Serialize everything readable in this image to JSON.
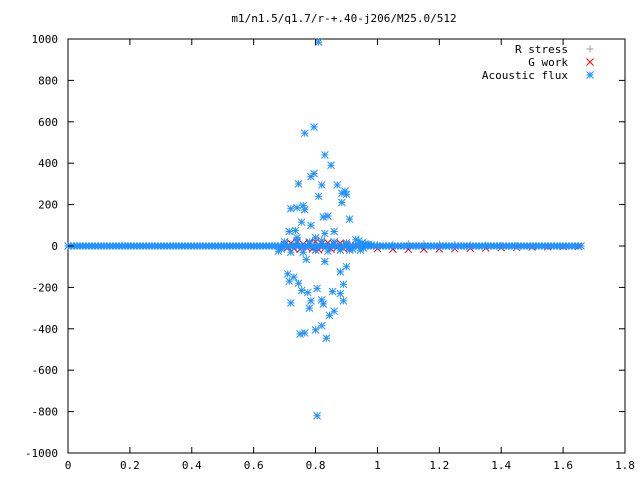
{
  "chart_data": {
    "type": "scatter",
    "title": "m1/n1.5/q1.7/r-+.40-j206/M25.0/512",
    "xlabel": "",
    "ylabel": "",
    "xlim": [
      0,
      1.8
    ],
    "ylim": [
      -1000,
      1000
    ],
    "x_ticks": [
      "0",
      "0.2",
      "0.4",
      "0.6",
      "0.8",
      "1",
      "1.2",
      "1.4",
      "1.6",
      "1.8"
    ],
    "y_ticks": [
      "1000",
      "800",
      "600",
      "400",
      "200",
      "0",
      "-200",
      "-400",
      "-600",
      "-800",
      "-1000"
    ],
    "x_tick_values": [
      0,
      0.2,
      0.4,
      0.6,
      0.8,
      1.0,
      1.2,
      1.4,
      1.6,
      1.8
    ],
    "y_tick_values": [
      1000,
      800,
      600,
      400,
      200,
      0,
      -200,
      -400,
      -600,
      -800,
      -1000
    ],
    "grid": false,
    "legend_position": "top-right",
    "series": [
      {
        "name": "R stress",
        "color": "#a0a0a0",
        "marker": "plus",
        "points": [
          [
            0.7,
            2
          ],
          [
            0.72,
            -3
          ],
          [
            0.74,
            4
          ],
          [
            0.76,
            -2
          ],
          [
            0.78,
            3
          ],
          [
            0.8,
            -4
          ],
          [
            0.82,
            2
          ],
          [
            0.84,
            -2
          ],
          [
            0.86,
            3
          ],
          [
            0.88,
            -3
          ],
          [
            0.9,
            2
          ],
          [
            0.95,
            5
          ],
          [
            1.0,
            8
          ],
          [
            1.05,
            10
          ],
          [
            1.1,
            12
          ],
          [
            1.15,
            12
          ],
          [
            1.2,
            10
          ],
          [
            1.25,
            8
          ],
          [
            1.3,
            6
          ],
          [
            1.35,
            4
          ],
          [
            1.4,
            3
          ],
          [
            1.45,
            2
          ],
          [
            1.5,
            1
          ],
          [
            1.55,
            1
          ],
          [
            1.6,
            0
          ],
          [
            1.65,
            0
          ]
        ]
      },
      {
        "name": "G work",
        "color": "#ff0000",
        "marker": "cross",
        "points": [
          [
            0.7,
            8
          ],
          [
            0.71,
            -8
          ],
          [
            0.72,
            14
          ],
          [
            0.73,
            -12
          ],
          [
            0.74,
            18
          ],
          [
            0.75,
            -16
          ],
          [
            0.76,
            10
          ],
          [
            0.77,
            -6
          ],
          [
            0.78,
            15
          ],
          [
            0.79,
            -14
          ],
          [
            0.8,
            20
          ],
          [
            0.81,
            -18
          ],
          [
            0.82,
            12
          ],
          [
            0.83,
            -10
          ],
          [
            0.84,
            16
          ],
          [
            0.85,
            -15
          ],
          [
            0.86,
            9
          ],
          [
            0.87,
            -8
          ],
          [
            0.88,
            14
          ],
          [
            0.89,
            -12
          ],
          [
            0.9,
            6
          ],
          [
            0.91,
            -5
          ],
          [
            0.93,
            2
          ],
          [
            1.0,
            -12
          ],
          [
            1.05,
            -15
          ],
          [
            1.1,
            -16
          ],
          [
            1.15,
            -15
          ],
          [
            1.2,
            -14
          ],
          [
            1.25,
            -13
          ],
          [
            1.3,
            -11
          ],
          [
            1.35,
            -10
          ],
          [
            1.4,
            -8
          ],
          [
            1.45,
            -7
          ],
          [
            1.5,
            -5
          ],
          [
            1.55,
            -4
          ],
          [
            1.6,
            -3
          ],
          [
            1.65,
            -2
          ]
        ]
      },
      {
        "name": "Acoustic flux",
        "color": "#1e90ff",
        "marker": "star",
        "points": [
          [
            0.81,
            985
          ],
          [
            0.795,
            575
          ],
          [
            0.765,
            545
          ],
          [
            0.83,
            440
          ],
          [
            0.85,
            390
          ],
          [
            0.795,
            350
          ],
          [
            0.785,
            335
          ],
          [
            0.745,
            300
          ],
          [
            0.82,
            295
          ],
          [
            0.87,
            295
          ],
          [
            0.895,
            265
          ],
          [
            0.885,
            255
          ],
          [
            0.81,
            240
          ],
          [
            0.9,
            250
          ],
          [
            0.885,
            210
          ],
          [
            0.76,
            195
          ],
          [
            0.765,
            175
          ],
          [
            0.74,
            185
          ],
          [
            0.72,
            180
          ],
          [
            0.91,
            130
          ],
          [
            0.84,
            145
          ],
          [
            0.825,
            140
          ],
          [
            0.785,
            100
          ],
          [
            0.755,
            115
          ],
          [
            0.735,
            75
          ],
          [
            0.715,
            70
          ],
          [
            0.86,
            70
          ],
          [
            0.83,
            60
          ],
          [
            0.8,
            40
          ],
          [
            0.74,
            40
          ],
          [
            0.91,
            -20
          ],
          [
            0.77,
            -65
          ],
          [
            0.83,
            -75
          ],
          [
            0.9,
            -100
          ],
          [
            0.88,
            -125
          ],
          [
            0.71,
            -135
          ],
          [
            0.73,
            -150
          ],
          [
            0.715,
            -170
          ],
          [
            0.745,
            -180
          ],
          [
            0.89,
            -185
          ],
          [
            0.755,
            -215
          ],
          [
            0.805,
            -205
          ],
          [
            0.775,
            -225
          ],
          [
            0.855,
            -220
          ],
          [
            0.88,
            -230
          ],
          [
            0.82,
            -260
          ],
          [
            0.785,
            -265
          ],
          [
            0.825,
            -280
          ],
          [
            0.89,
            -265
          ],
          [
            0.72,
            -275
          ],
          [
            0.86,
            -315
          ],
          [
            0.78,
            -300
          ],
          [
            0.845,
            -335
          ],
          [
            0.82,
            -385
          ],
          [
            0.8,
            -405
          ],
          [
            0.765,
            -420
          ],
          [
            0.75,
            -425
          ],
          [
            0.835,
            -445
          ],
          [
            0.805,
            -820
          ],
          [
            0.68,
            -25
          ],
          [
            0.69,
            -15
          ],
          [
            0.7,
            20
          ],
          [
            0.72,
            -30
          ],
          [
            0.74,
            25
          ],
          [
            0.76,
            -30
          ],
          [
            0.78,
            20
          ],
          [
            0.8,
            -20
          ],
          [
            0.82,
            25
          ],
          [
            0.84,
            -25
          ],
          [
            0.86,
            20
          ],
          [
            0.88,
            -20
          ],
          [
            0.9,
            15
          ],
          [
            0.92,
            -15
          ],
          [
            0.94,
            25
          ],
          [
            0.95,
            15
          ],
          [
            0.96,
            10
          ],
          [
            0.97,
            8
          ],
          [
            0.98,
            5
          ],
          [
            0.93,
            30
          ],
          [
            0.945,
            -20
          ],
          [
            0.955,
            -10
          ],
          [
            0.965,
            5
          ]
        ],
        "dense_band": {
          "x_from": 0.0,
          "x_to": 1.66,
          "y": 0,
          "halfwidth": 6
        }
      }
    ]
  }
}
